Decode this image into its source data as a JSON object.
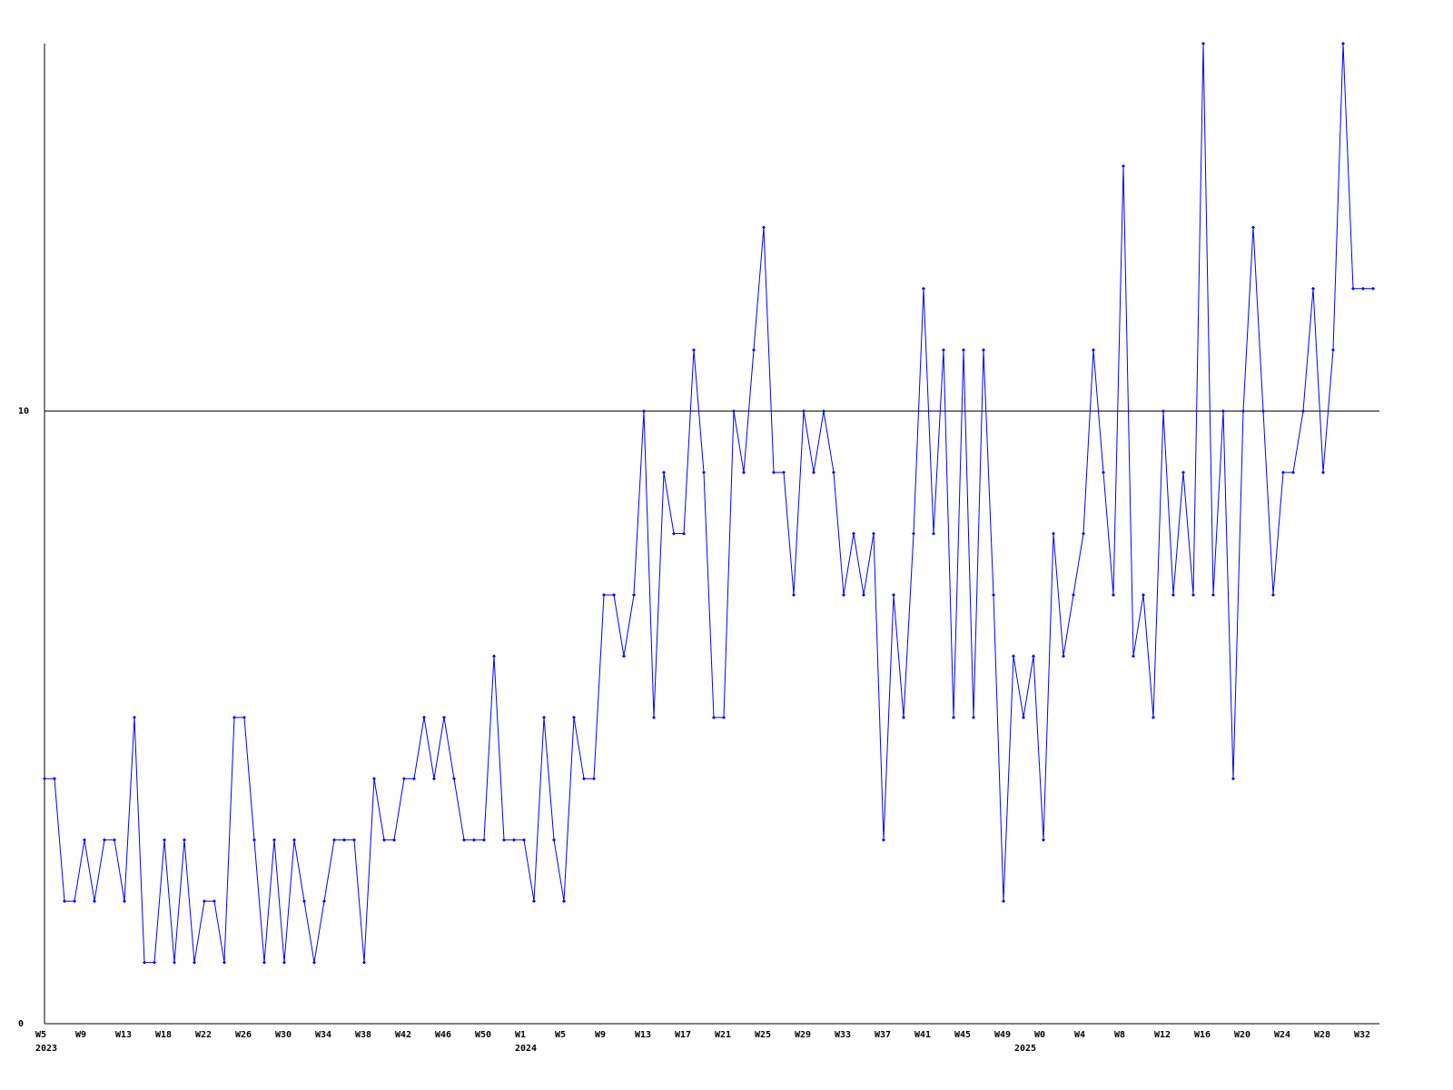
{
  "chart_data": {
    "type": "line",
    "categories": [
      "W5",
      null,
      null,
      null,
      "W9",
      null,
      null,
      null,
      "W13",
      null,
      null,
      null,
      "W18",
      null,
      null,
      null,
      "W22",
      null,
      null,
      null,
      "W26",
      null,
      null,
      null,
      "W30",
      null,
      null,
      null,
      "W34",
      null,
      null,
      null,
      "W38",
      null,
      null,
      null,
      "W42",
      null,
      null,
      null,
      "W46",
      null,
      null,
      null,
      "W50",
      null,
      null,
      null,
      "W1",
      null,
      null,
      null,
      "W5",
      null,
      null,
      null,
      "W9",
      null,
      null,
      null,
      "W13",
      null,
      null,
      null,
      "W17",
      null,
      null,
      null,
      "W21",
      null,
      null,
      null,
      "W25",
      null,
      null,
      null,
      "W29",
      null,
      null,
      null,
      "W33",
      null,
      null,
      null,
      "W37",
      null,
      null,
      null,
      "W41",
      null,
      null,
      null,
      "W45",
      null,
      null,
      null,
      "W49",
      null,
      null,
      null,
      "W0",
      null,
      null,
      null,
      "W4",
      null,
      null,
      null,
      "W8",
      null,
      null,
      null,
      "W12",
      null,
      null,
      null,
      "W16",
      null,
      null,
      null,
      "W20",
      null,
      null,
      null,
      "W24",
      null,
      null,
      null,
      "W28",
      null,
      null,
      null,
      "W32",
      null
    ],
    "years": [
      "2023",
      null,
      null,
      null,
      null,
      null,
      null,
      null,
      null,
      null,
      null,
      null,
      null,
      null,
      null,
      null,
      null,
      null,
      null,
      null,
      null,
      null,
      null,
      null,
      null,
      null,
      null,
      null,
      null,
      null,
      null,
      null,
      null,
      null,
      null,
      null,
      null,
      null,
      null,
      null,
      null,
      null,
      null,
      null,
      null,
      null,
      null,
      null,
      "2024",
      null,
      null,
      null,
      null,
      null,
      null,
      null,
      null,
      null,
      null,
      null,
      null,
      null,
      null,
      null,
      null,
      null,
      null,
      null,
      null,
      null,
      null,
      null,
      null,
      null,
      null,
      null,
      null,
      null,
      null,
      null,
      null,
      null,
      null,
      null,
      null,
      null,
      null,
      null,
      null,
      null,
      null,
      null,
      null,
      null,
      null,
      null,
      null,
      null,
      "2025",
      null,
      null,
      null,
      null,
      null,
      null,
      null,
      null,
      null,
      null,
      null,
      null,
      null,
      null,
      null,
      null,
      null,
      null,
      null,
      null,
      null,
      null,
      null,
      null,
      null,
      null,
      null,
      null,
      null,
      null,
      null,
      null,
      null
    ],
    "series": [
      {
        "color": "#0000ff",
        "values": [
          4,
          4,
          2,
          2,
          3,
          2,
          3,
          3,
          2,
          5,
          1,
          1,
          3,
          1,
          3,
          1,
          2,
          2,
          1,
          5,
          5,
          3,
          1,
          3,
          1,
          3,
          2,
          1,
          2,
          3,
          3,
          3,
          1,
          4,
          3,
          3,
          4,
          4,
          5,
          4,
          5,
          4,
          3,
          3,
          3,
          6,
          3,
          3,
          3,
          2,
          5,
          3,
          2,
          5,
          4,
          4,
          7,
          7,
          6,
          7,
          10,
          5,
          9,
          8,
          8,
          11,
          9,
          5,
          5,
          10,
          9,
          11,
          13,
          9,
          9,
          7,
          10,
          9,
          10,
          9,
          7,
          8,
          7,
          8,
          3,
          7,
          5,
          8,
          12,
          8,
          11,
          5,
          11,
          5,
          11,
          7,
          2,
          6,
          5,
          6,
          3,
          8,
          6,
          7,
          8,
          11,
          9,
          7,
          14,
          6,
          7,
          5,
          10,
          7,
          9,
          7,
          16,
          7,
          10,
          4,
          10,
          13,
          10,
          7,
          9,
          9,
          10,
          12,
          9,
          11,
          16,
          12,
          12,
          12
        ]
      }
    ],
    "ylim": [
      0,
      16
    ],
    "yticks": [
      0,
      10
    ],
    "grid_lines": [
      10
    ]
  }
}
